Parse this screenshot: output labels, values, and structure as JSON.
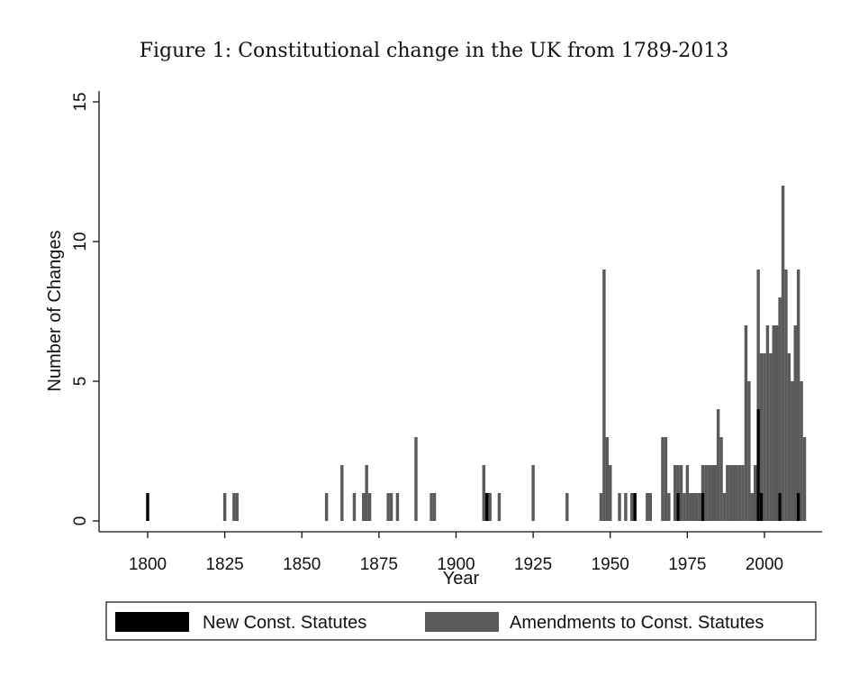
{
  "chart_data": {
    "type": "bar",
    "stacked": true,
    "title": "Figure 1: Constitutional change in the UK from 1789-2013",
    "xlabel": "Year",
    "ylabel": "Number of Changes",
    "xlim": [
      1789,
      2014
    ],
    "ylim": [
      0,
      15
    ],
    "xticks": [
      1800,
      1825,
      1850,
      1875,
      1900,
      1925,
      1950,
      1975,
      2000
    ],
    "yticks": [
      0,
      5,
      10,
      15
    ],
    "grid": false,
    "legend_position": "bottom",
    "colors": {
      "new": "#000000",
      "amend": "#5a5a5a",
      "axis": "#111111"
    },
    "series": [
      {
        "name": "New Const. Statutes",
        "key": "new",
        "points": [
          [
            1800,
            1
          ],
          [
            1910,
            1
          ],
          [
            1958,
            1
          ],
          [
            1972,
            1
          ],
          [
            1980,
            1
          ],
          [
            1998,
            4
          ],
          [
            1999,
            1
          ],
          [
            2005,
            1
          ],
          [
            2011,
            1
          ]
        ]
      },
      {
        "name": "Amendments to Const. Statutes",
        "key": "amend",
        "points": [
          [
            1825,
            1
          ],
          [
            1828,
            1
          ],
          [
            1829,
            1
          ],
          [
            1858,
            1
          ],
          [
            1863,
            2
          ],
          [
            1867,
            1
          ],
          [
            1870,
            1
          ],
          [
            1871,
            2
          ],
          [
            1872,
            1
          ],
          [
            1878,
            1
          ],
          [
            1879,
            1
          ],
          [
            1881,
            1
          ],
          [
            1887,
            3
          ],
          [
            1892,
            1
          ],
          [
            1893,
            1
          ],
          [
            1909,
            2
          ],
          [
            1911,
            1
          ],
          [
            1914,
            1
          ],
          [
            1925,
            2
          ],
          [
            1936,
            1
          ],
          [
            1947,
            1
          ],
          [
            1948,
            9
          ],
          [
            1949,
            3
          ],
          [
            1950,
            2
          ],
          [
            1953,
            1
          ],
          [
            1955,
            1
          ],
          [
            1957,
            1
          ],
          [
            1962,
            1
          ],
          [
            1963,
            1
          ],
          [
            1967,
            3
          ],
          [
            1968,
            3
          ],
          [
            1969,
            1
          ],
          [
            1971,
            2
          ],
          [
            1972,
            1
          ],
          [
            1973,
            2
          ],
          [
            1974,
            1
          ],
          [
            1975,
            2
          ],
          [
            1976,
            1
          ],
          [
            1977,
            1
          ],
          [
            1978,
            1
          ],
          [
            1979,
            1
          ],
          [
            1980,
            1
          ],
          [
            1981,
            2
          ],
          [
            1982,
            2
          ],
          [
            1983,
            2
          ],
          [
            1984,
            2
          ],
          [
            1985,
            4
          ],
          [
            1986,
            3
          ],
          [
            1987,
            1
          ],
          [
            1988,
            2
          ],
          [
            1989,
            2
          ],
          [
            1990,
            2
          ],
          [
            1991,
            2
          ],
          [
            1992,
            2
          ],
          [
            1993,
            2
          ],
          [
            1994,
            7
          ],
          [
            1995,
            5
          ],
          [
            1996,
            1
          ],
          [
            1997,
            2
          ],
          [
            1998,
            5
          ],
          [
            1999,
            5
          ],
          [
            2000,
            6
          ],
          [
            2001,
            7
          ],
          [
            2002,
            6
          ],
          [
            2003,
            7
          ],
          [
            2004,
            7
          ],
          [
            2005,
            7
          ],
          [
            2006,
            12
          ],
          [
            2007,
            9
          ],
          [
            2008,
            6
          ],
          [
            2009,
            5
          ],
          [
            2010,
            7
          ],
          [
            2011,
            8
          ],
          [
            2012,
            5
          ],
          [
            2013,
            3
          ]
        ]
      }
    ]
  }
}
